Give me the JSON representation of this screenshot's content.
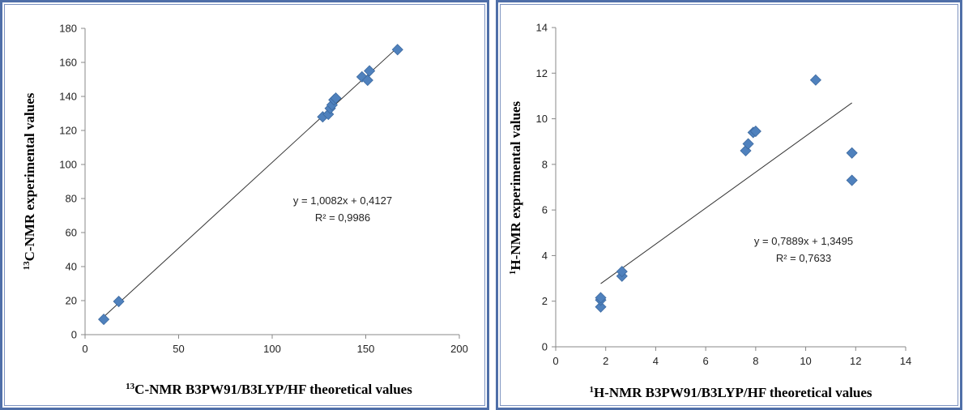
{
  "chart_data": [
    {
      "type": "scatter",
      "xlabel_sup": "13",
      "xlabel": "C-NMR B3PW91/B3LYP/HF theoretical values",
      "ylabel_sup": "13",
      "ylabel": "C-NMR experimental values",
      "xlim": [
        0,
        200
      ],
      "ylim": [
        0,
        180
      ],
      "xticks": [
        0,
        50,
        100,
        150,
        200
      ],
      "yticks": [
        0,
        20,
        40,
        60,
        80,
        100,
        120,
        140,
        160,
        180
      ],
      "grid": false,
      "marker_color": "#4f81bd",
      "series": [
        {
          "points": [
            [
              10,
              9
            ],
            [
              18,
              19.5
            ],
            [
              127,
              128
            ],
            [
              130,
              129.5
            ],
            [
              131,
              133
            ],
            [
              132,
              135
            ],
            [
              133,
              138
            ],
            [
              134,
              139
            ],
            [
              148,
              151.5
            ],
            [
              151,
              149.5
            ],
            [
              152,
              155
            ],
            [
              167,
              167.5
            ]
          ]
        }
      ],
      "trendline": {
        "slope": 1.0082,
        "intercept": 0.4127,
        "x_range": [
          10,
          167
        ]
      },
      "equation": "y = 1,0082x + 0,4127",
      "r2_label": "R² = 0,9986"
    },
    {
      "type": "scatter",
      "xlabel_sup": "1",
      "xlabel": "H-NMR B3PW91/B3LYP/HF theoretical values",
      "ylabel_sup": "1",
      "ylabel": "H-NMR experimental values",
      "xlim": [
        0,
        14
      ],
      "ylim": [
        0,
        14
      ],
      "xticks": [
        0,
        2,
        4,
        6,
        8,
        10,
        12,
        14
      ],
      "yticks": [
        0,
        2,
        4,
        6,
        8,
        10,
        12,
        14
      ],
      "grid": false,
      "marker_color": "#4f81bd",
      "series": [
        {
          "points": [
            [
              1.8,
              1.75
            ],
            [
              1.8,
              2.05
            ],
            [
              1.8,
              2.15
            ],
            [
              2.65,
              3.1
            ],
            [
              2.65,
              3.3
            ],
            [
              7.6,
              8.6
            ],
            [
              7.7,
              8.9
            ],
            [
              7.9,
              9.4
            ],
            [
              8.0,
              9.45
            ],
            [
              10.4,
              11.7
            ],
            [
              11.85,
              8.5
            ],
            [
              11.85,
              7.3
            ]
          ]
        }
      ],
      "trendline": {
        "slope": 0.7889,
        "intercept": 1.3495,
        "x_range": [
          1.8,
          11.85
        ]
      },
      "equation": "y = 0,7889x + 1,3495",
      "r2_label": "R² = 0,7633"
    }
  ]
}
